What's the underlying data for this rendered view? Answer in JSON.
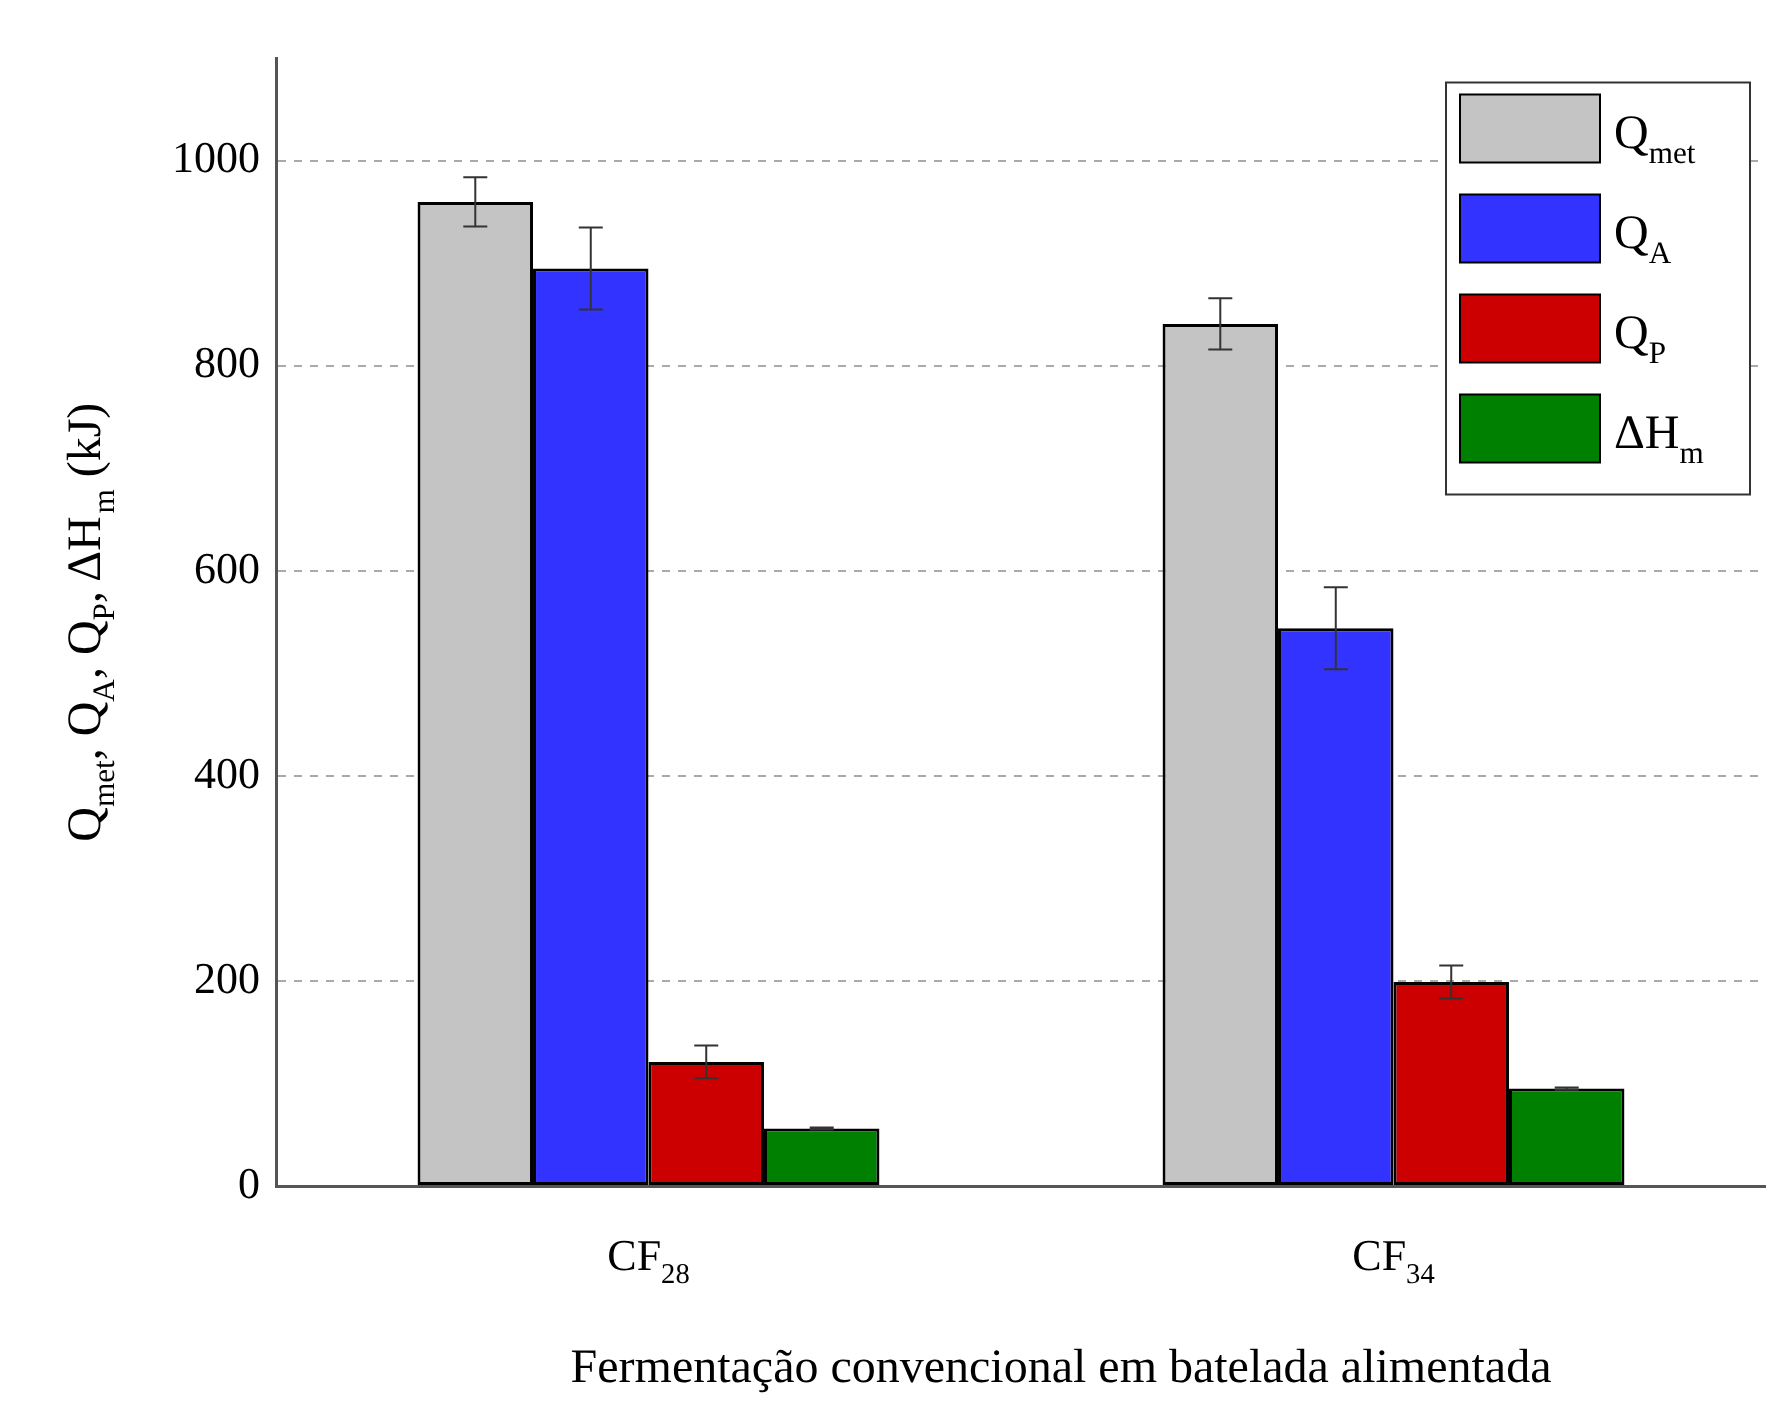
{
  "chart_data": {
    "type": "bar",
    "xlabel": "Fermentação convencional em batelada alimentada",
    "ylabel": "Q$_{met}$, Q$_{A}$, Q$_{P}$, ΔH$_{m}$ (kJ)",
    "categories": [
      "CF$_{28}$",
      "CF$_{34}$"
    ],
    "series": [
      {
        "name": "Q$_{met}$",
        "color": "#c4c4c4",
        "values": [
          960,
          841
        ],
        "errors": [
          24,
          25
        ]
      },
      {
        "name": "Q$_{A}$",
        "color": "#3333ff",
        "values": [
          895,
          544
        ],
        "errors": [
          40,
          40
        ]
      },
      {
        "name": "Q$_{P}$",
        "color": "#cc0000",
        "values": [
          121,
          199
        ],
        "errors": [
          16,
          16
        ]
      },
      {
        "name": "ΔH$_{m}$",
        "color": "#008000",
        "values": [
          56,
          95
        ],
        "errors": [
          1,
          1
        ]
      }
    ],
    "ylim": [
      0,
      1100
    ],
    "yticks": [
      0,
      200,
      400,
      600,
      800,
      1000
    ],
    "grid": "y",
    "legend": "top right"
  }
}
